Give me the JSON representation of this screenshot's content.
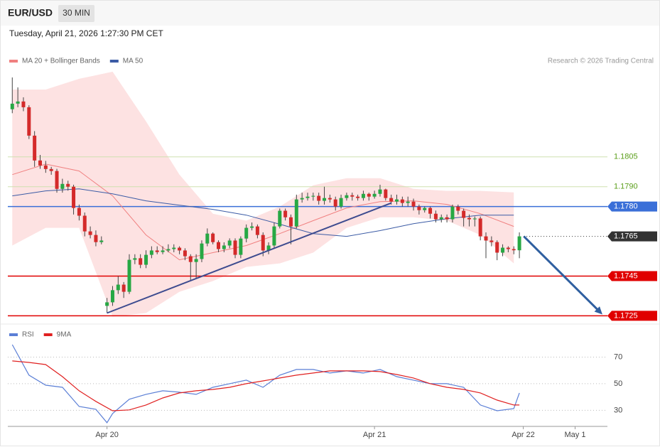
{
  "header": {
    "symbol": "EUR/USD",
    "interval": "30 MIN",
    "datetime": "Tuesday, April 21, 2026 1:27:30 PM CET",
    "credit": "Research © 2026 Trading Central"
  },
  "chart_data": [
    {
      "type": "candlestick",
      "up_color": "#27a844",
      "down_color": "#d42a2a",
      "xlim": [
        -0.8,
        106.8
      ],
      "ylim": [
        1.1723,
        1.185
      ],
      "ohlc": [
        [
          1.1829,
          1.1845,
          1.1827,
          1.18318
        ],
        [
          1.18318,
          1.184,
          1.183,
          1.18329
        ],
        [
          1.18329,
          1.1835,
          1.1828,
          1.183
        ],
        [
          1.183,
          1.1831,
          1.1814,
          1.18157
        ],
        [
          1.18157,
          1.1818,
          1.18,
          1.18032
        ],
        [
          1.18032,
          1.1806,
          1.1799,
          1.18007
        ],
        [
          1.18007,
          1.1803,
          1.1797,
          1.17989
        ],
        [
          1.17989,
          1.18,
          1.1796,
          1.17979
        ],
        [
          1.17979,
          1.1799,
          1.1787,
          1.17889
        ],
        [
          1.17889,
          1.1794,
          1.1787,
          1.17914
        ],
        [
          1.17914,
          1.1793,
          1.1788,
          1.179
        ],
        [
          1.179,
          1.1791,
          1.1776,
          1.17793
        ],
        [
          1.17793,
          1.1781,
          1.1773,
          1.17754
        ],
        [
          1.17754,
          1.1777,
          1.1765,
          1.17675
        ],
        [
          1.17675,
          1.177,
          1.1764,
          1.17657
        ],
        [
          1.17657,
          1.1768,
          1.176,
          1.17621
        ],
        [
          1.17621,
          1.1765,
          1.1761,
          1.17629
        ],
        [
          1.173,
          1.1734,
          1.17264,
          1.17318
        ],
        [
          1.17318,
          1.174,
          1.173,
          1.17379
        ],
        [
          1.17379,
          1.1745,
          1.1736,
          1.17407
        ],
        [
          1.17407,
          1.1742,
          1.1734,
          1.17371
        ],
        [
          1.17371,
          1.1756,
          1.1736,
          1.17532
        ],
        [
          1.17532,
          1.1756,
          1.1751,
          1.1754
        ],
        [
          1.1754,
          1.1756,
          1.1749,
          1.17507
        ],
        [
          1.17507,
          1.1758,
          1.1749,
          1.17557
        ],
        [
          1.17557,
          1.176,
          1.1754,
          1.17579
        ],
        [
          1.17579,
          1.176,
          1.1756,
          1.17571
        ],
        [
          1.17571,
          1.176,
          1.1756,
          1.17579
        ],
        [
          1.17579,
          1.1761,
          1.1757,
          1.17586
        ],
        [
          1.17586,
          1.1761,
          1.1757,
          1.17593
        ],
        [
          1.17593,
          1.176,
          1.1756,
          1.17579
        ],
        [
          1.17579,
          1.1759,
          1.1753,
          1.1755
        ],
        [
          1.1755,
          1.1756,
          1.1743,
          1.17521
        ],
        [
          1.17521,
          1.1756,
          1.1744,
          1.17536
        ],
        [
          1.17536,
          1.1763,
          1.1752,
          1.17614
        ],
        [
          1.17614,
          1.1769,
          1.176,
          1.17664
        ],
        [
          1.17664,
          1.1767,
          1.1761,
          1.17621
        ],
        [
          1.17621,
          1.1763,
          1.1757,
          1.17586
        ],
        [
          1.17586,
          1.1762,
          1.1757,
          1.17604
        ],
        [
          1.17604,
          1.1764,
          1.1759,
          1.17629
        ],
        [
          1.17629,
          1.1764,
          1.1754,
          1.17557
        ],
        [
          1.17557,
          1.1765,
          1.1754,
          1.17639
        ],
        [
          1.17639,
          1.1771,
          1.1762,
          1.17693
        ],
        [
          1.17693,
          1.1772,
          1.1768,
          1.177
        ],
        [
          1.177,
          1.1771,
          1.1764,
          1.17657
        ],
        [
          1.17657,
          1.1767,
          1.1755,
          1.17579
        ],
        [
          1.17579,
          1.1762,
          1.1756,
          1.17604
        ],
        [
          1.17604,
          1.1772,
          1.1759,
          1.177
        ],
        [
          1.177,
          1.1779,
          1.1769,
          1.17779
        ],
        [
          1.17779,
          1.1779,
          1.1773,
          1.17746
        ],
        [
          1.17746,
          1.1776,
          1.1761,
          1.177
        ],
        [
          1.177,
          1.1786,
          1.1769,
          1.17836
        ],
        [
          1.17836,
          1.1787,
          1.1782,
          1.17843
        ],
        [
          1.17843,
          1.1787,
          1.1783,
          1.1785
        ],
        [
          1.1785,
          1.1787,
          1.1783,
          1.17854
        ],
        [
          1.17854,
          1.1787,
          1.1781,
          1.17829
        ],
        [
          1.17829,
          1.179,
          1.1781,
          1.17843
        ],
        [
          1.17843,
          1.1786,
          1.1782,
          1.17836
        ],
        [
          1.17836,
          1.1785,
          1.1778,
          1.178
        ],
        [
          1.178,
          1.1786,
          1.1779,
          1.17843
        ],
        [
          1.17843,
          1.1787,
          1.1783,
          1.17857
        ],
        [
          1.17857,
          1.1787,
          1.1783,
          1.1785
        ],
        [
          1.1785,
          1.1786,
          1.1783,
          1.17843
        ],
        [
          1.17843,
          1.1788,
          1.1783,
          1.17864
        ],
        [
          1.17864,
          1.1787,
          1.1783,
          1.1785
        ],
        [
          1.1785,
          1.1788,
          1.1784,
          1.17864
        ],
        [
          1.17864,
          1.1791,
          1.1785,
          1.17886
        ],
        [
          1.17886,
          1.1789,
          1.1783,
          1.17843
        ],
        [
          1.17843,
          1.1786,
          1.1781,
          1.17825
        ],
        [
          1.17825,
          1.1786,
          1.1781,
          1.17836
        ],
        [
          1.17836,
          1.1785,
          1.178,
          1.17818
        ],
        [
          1.17818,
          1.1785,
          1.178,
          1.17825
        ],
        [
          1.17825,
          1.1784,
          1.1778,
          1.178
        ],
        [
          1.178,
          1.1781,
          1.1776,
          1.17782
        ],
        [
          1.17782,
          1.178,
          1.1777,
          1.17793
        ],
        [
          1.17793,
          1.178,
          1.1774,
          1.17764
        ],
        [
          1.17764,
          1.1778,
          1.1772,
          1.17736
        ],
        [
          1.17736,
          1.1776,
          1.1772,
          1.17746
        ],
        [
          1.17746,
          1.1776,
          1.1772,
          1.17736
        ],
        [
          1.17736,
          1.1781,
          1.1772,
          1.178
        ],
        [
          1.178,
          1.1781,
          1.1776,
          1.17779
        ],
        [
          1.17779,
          1.1779,
          1.177,
          1.17743
        ],
        [
          1.17743,
          1.1776,
          1.177,
          1.17736
        ],
        [
          1.17736,
          1.1775,
          1.177,
          1.1774
        ],
        [
          1.1774,
          1.1775,
          1.1763,
          1.1765
        ],
        [
          1.1765,
          1.1767,
          1.1754,
          1.17629
        ],
        [
          1.17629,
          1.1765,
          1.176,
          1.17621
        ],
        [
          1.17621,
          1.1763,
          1.1753,
          1.17568
        ],
        [
          1.17568,
          1.1761,
          1.1755,
          1.17593
        ],
        [
          1.17593,
          1.176,
          1.1757,
          1.17586
        ],
        [
          1.17586,
          1.176,
          1.1756,
          1.1758
        ],
        [
          1.1758,
          1.1767,
          1.1754,
          1.1765
        ]
      ],
      "series": [
        {
          "name": "MA 20 + Bollinger Bands",
          "color": "#f08080",
          "band_color": "#fde2e2",
          "x": [
            0,
            6,
            12,
            18,
            24,
            30,
            36,
            42,
            48,
            54,
            60,
            66,
            72,
            78,
            84,
            90
          ],
          "values": [
            1.17961,
            1.18014,
            1.17979,
            1.17854,
            1.17657,
            1.17532,
            1.17568,
            1.17604,
            1.17664,
            1.17729,
            1.17793,
            1.17825,
            1.17829,
            1.17811,
            1.17764,
            1.177
          ],
          "upper": [
            1.18389,
            1.18389,
            1.18443,
            1.18479,
            1.18229,
            1.17961,
            1.17764,
            1.17729,
            1.178,
            1.17907,
            1.17943,
            1.17943,
            1.17889,
            1.17879,
            1.17879,
            1.17871
          ],
          "lower": [
            1.17604,
            1.17693,
            1.17693,
            1.17246,
            1.17264,
            1.17371,
            1.17425,
            1.17496,
            1.17514,
            1.17568,
            1.17693,
            1.17746,
            1.17746,
            1.17729,
            1.17657,
            1.17514
          ]
        },
        {
          "name": "MA 50",
          "color": "#3b5ba5",
          "x": [
            0,
            6,
            12,
            18,
            24,
            30,
            36,
            42,
            48,
            54,
            60,
            66,
            72,
            78,
            84,
            90
          ],
          "values": [
            1.17854,
            1.17879,
            1.17889,
            1.17864,
            1.17829,
            1.17807,
            1.17786,
            1.17757,
            1.17711,
            1.17664,
            1.1765,
            1.17679,
            1.17714,
            1.17739,
            1.17757,
            1.17757
          ]
        }
      ],
      "trendlines": [
        {
          "x": [
            17,
            68
          ],
          "values": [
            1.17264,
            1.17818
          ],
          "color": "#3d4b8f"
        }
      ],
      "arrow": {
        "x": [
          91.8,
          105.9
        ],
        "values": [
          1.1765,
          1.17257
        ],
        "color": "#2f5fa0"
      },
      "levels": [
        {
          "value": 1.1805,
          "label": "1.1805",
          "line_color": "#cfe0b0",
          "label_color": "#5a9e1a"
        },
        {
          "value": 1.179,
          "label": "1.1790",
          "line_color": "#cfe0b0",
          "label_color": "#5a9e1a"
        },
        {
          "value": 1.178,
          "label": "1.1780",
          "line_color": "#3a6fd8",
          "label_color": "#ffffff",
          "label_bg": "#3a6fd8"
        },
        {
          "value": 1.1765,
          "label": "1.1765",
          "line_color": "#333333",
          "label_color": "#ffffff",
          "label_bg": "#333333",
          "dash": true
        },
        {
          "value": 1.1745,
          "label": "1.1745",
          "line_color": "#e00000",
          "label_color": "#ffffff",
          "label_bg": "#e00000"
        },
        {
          "value": 1.1725,
          "label": "1.1725",
          "line_color": "#e00000",
          "label_color": "#ffffff",
          "label_bg": "#e00000"
        }
      ]
    },
    {
      "type": "line",
      "xlim": [
        -0.8,
        106.8
      ],
      "ylim": [
        19,
        90
      ],
      "yticks": [
        30,
        50,
        70
      ],
      "grid": true,
      "xticks": [
        {
          "value": 17,
          "label": "Apr 20"
        },
        {
          "value": 65,
          "label": "Apr 21"
        },
        {
          "value": 91.7,
          "label": "Apr 22"
        },
        {
          "value": 101,
          "label": "May 1"
        }
      ],
      "series": [
        {
          "name": "RSI",
          "color": "#5b7fd6",
          "x": [
            0,
            3,
            6,
            9,
            12,
            15,
            17,
            18,
            21,
            24,
            27,
            30,
            33,
            36,
            39,
            42,
            45,
            48,
            51,
            54,
            57,
            60,
            63,
            66,
            69,
            72,
            75,
            78,
            81,
            84,
            87,
            90,
            91
          ],
          "values": [
            79.3,
            56.4,
            48.9,
            47.3,
            32.9,
            30.8,
            20.7,
            27.6,
            38.3,
            42,
            44.7,
            43.6,
            42,
            47.3,
            50,
            52.7,
            47.3,
            56.4,
            60.7,
            60.7,
            58,
            59.6,
            58,
            60.7,
            55.3,
            52.7,
            50,
            50,
            47.3,
            34,
            29.7,
            31.3,
            43.1
          ]
        },
        {
          "name": "9MA",
          "color": "#e02020",
          "x": [
            0,
            3,
            6,
            9,
            12,
            15,
            18,
            21,
            24,
            27,
            30,
            33,
            36,
            39,
            42,
            45,
            48,
            51,
            54,
            57,
            60,
            63,
            66,
            69,
            72,
            75,
            78,
            81,
            84,
            87,
            90,
            91
          ],
          "values": [
            67.1,
            66,
            64.4,
            55.3,
            44.7,
            36.7,
            29.7,
            30.3,
            34,
            39.3,
            43.1,
            44.7,
            45.7,
            47.3,
            50,
            52.1,
            54.3,
            56.4,
            58,
            59.6,
            59.6,
            59.6,
            59.1,
            56.9,
            54.3,
            50,
            47.3,
            45.7,
            43.1,
            37.7,
            34,
            34
          ]
        }
      ]
    }
  ]
}
